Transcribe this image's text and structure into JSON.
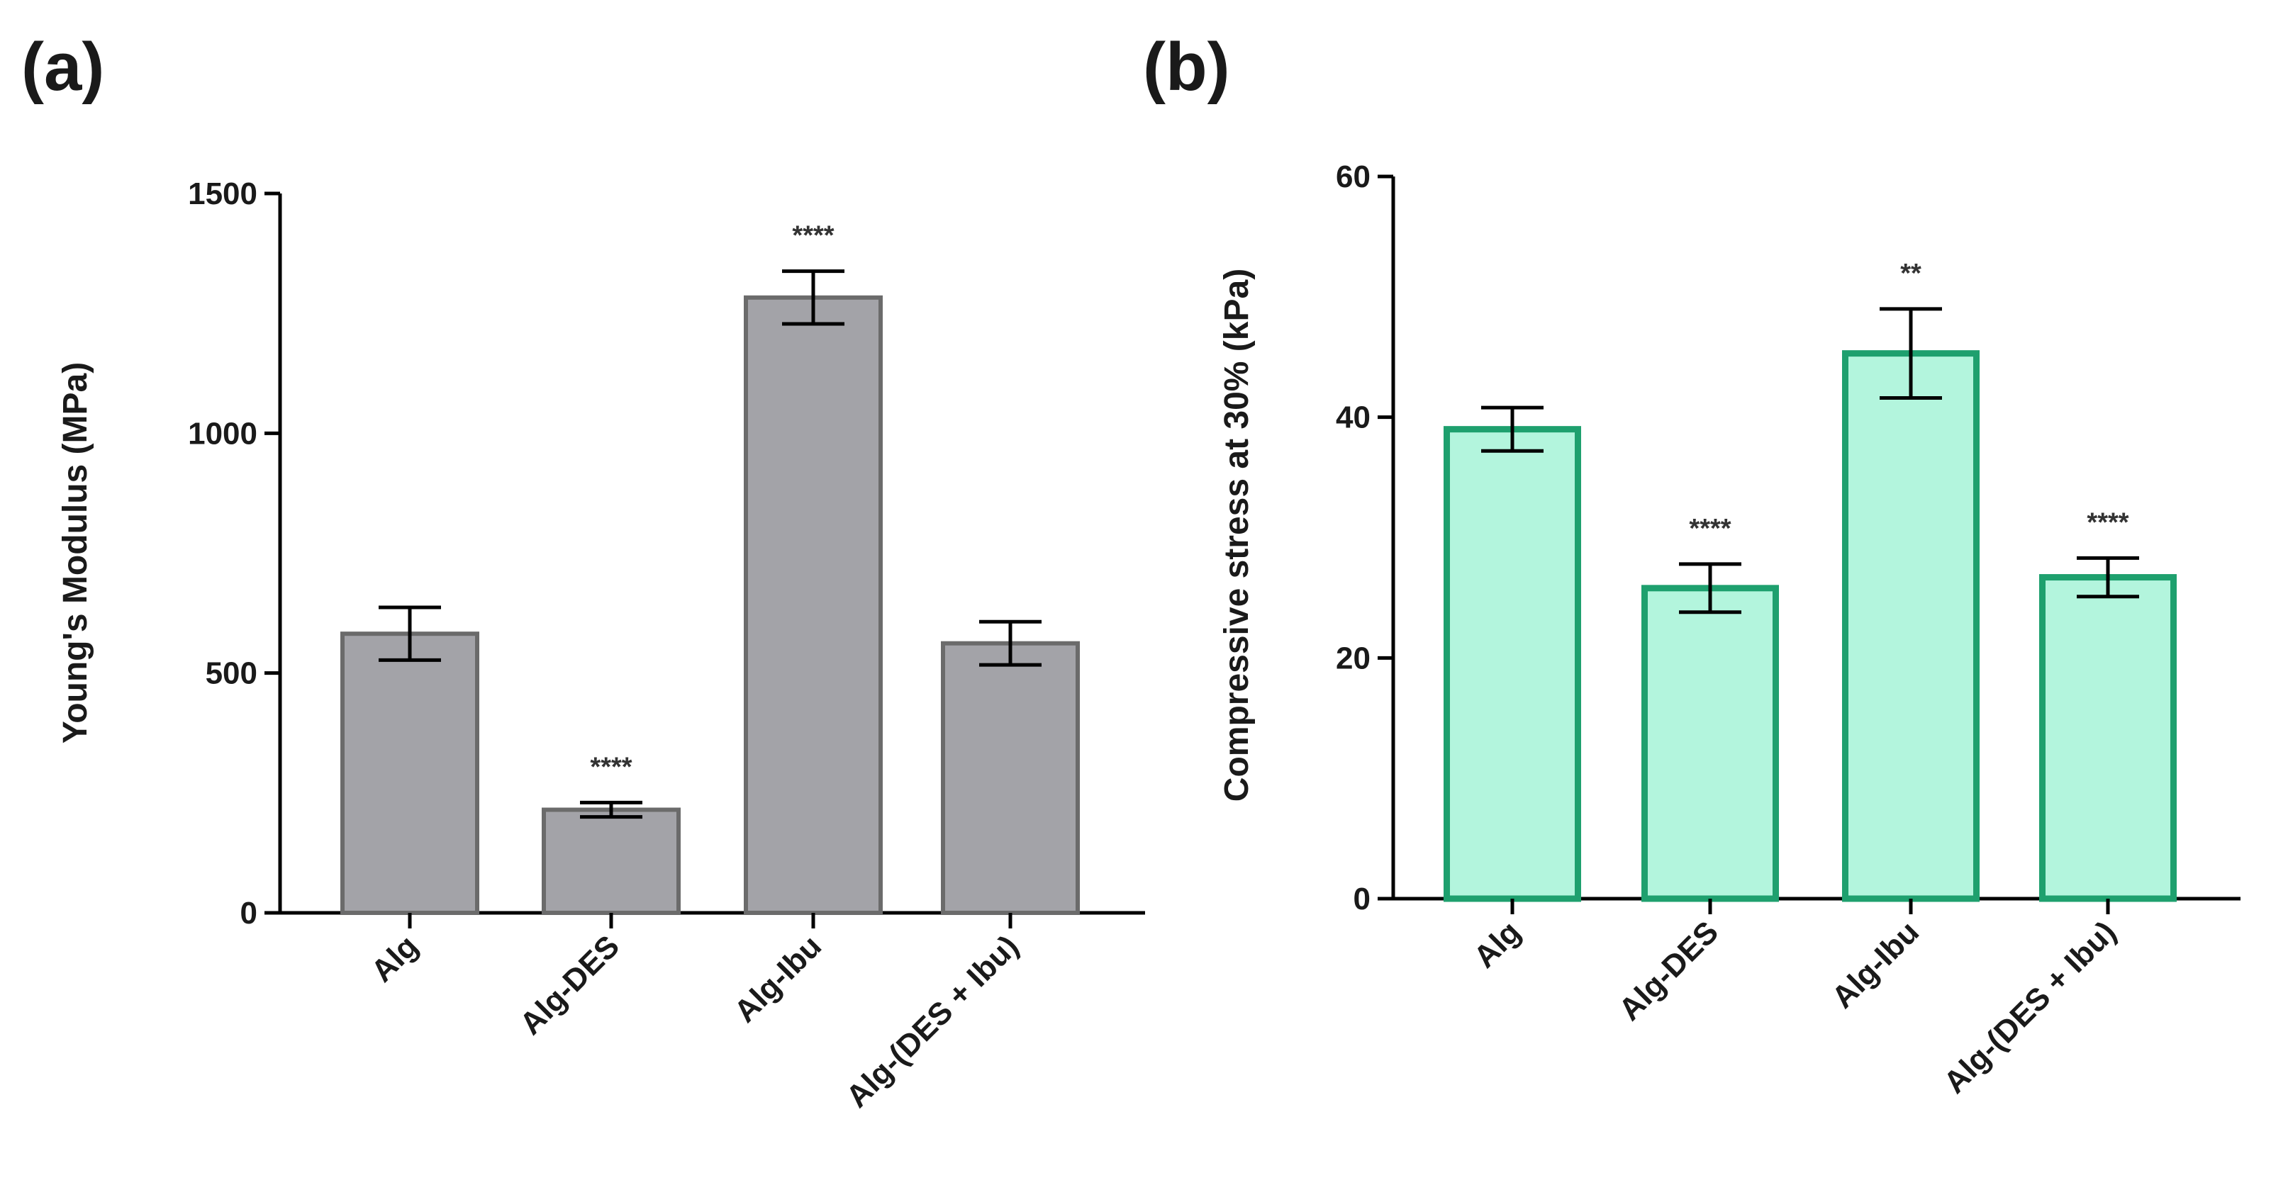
{
  "panels": {
    "a": "(a)",
    "b": "(b)"
  },
  "chart_data": [
    {
      "type": "bar",
      "panel": "(a)",
      "categories": [
        "Alg",
        "Alg-DES",
        "Alg-Ibu",
        "Alg-(DES + Ibu)"
      ],
      "values": [
        582,
        215,
        1283,
        562
      ],
      "errors": [
        55,
        15,
        55,
        45
      ],
      "significance": [
        "",
        "****",
        "****",
        ""
      ],
      "ylabel": "Young's Modulus (MPa)",
      "xlabel": "",
      "ylim": [
        0,
        1500
      ],
      "yticks": [
        0,
        500,
        1000,
        1500
      ],
      "fill": "#a3a3a8",
      "stroke": "#6b6b6b"
    },
    {
      "type": "bar",
      "panel": "(b)",
      "categories": [
        "Alg",
        "Alg-DES",
        "Alg-Ibu",
        "Alg-(DES + Ibu)"
      ],
      "values": [
        39,
        25.8,
        45.3,
        26.7
      ],
      "errors": [
        1.8,
        2.0,
        3.7,
        1.6
      ],
      "significance": [
        "",
        "****",
        "**",
        "****"
      ],
      "ylabel": "Compressive stress at 30% (kPa)",
      "xlabel": "",
      "ylim": [
        0,
        60
      ],
      "yticks": [
        0,
        20,
        40,
        60
      ],
      "fill": "#b3f5dd",
      "stroke": "#1ea06e"
    }
  ]
}
